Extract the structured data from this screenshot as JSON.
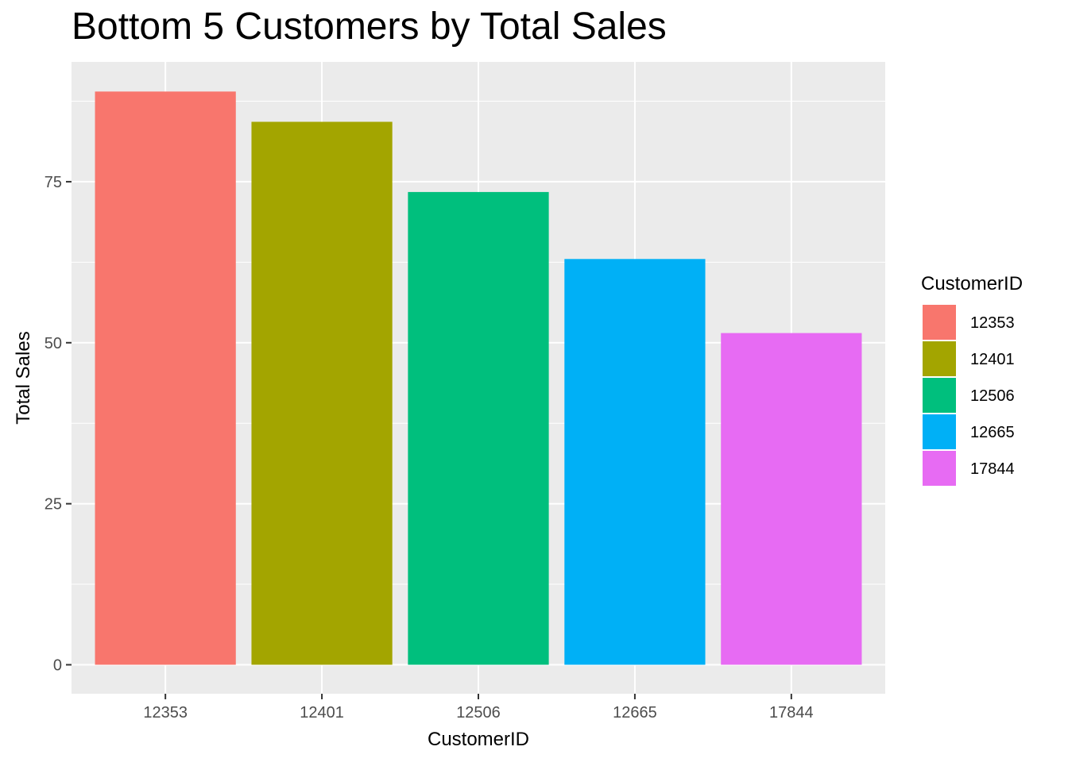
{
  "chart_data": {
    "type": "bar",
    "title": "Bottom 5 Customers by Total Sales",
    "xlabel": "CustomerID",
    "ylabel": "Total Sales",
    "categories": [
      "12353",
      "12401",
      "12506",
      "12665",
      "17844"
    ],
    "values": [
      89.0,
      84.3,
      73.4,
      63.0,
      51.5
    ],
    "colors": [
      "#F8766D",
      "#A3A500",
      "#00BF7D",
      "#00B0F6",
      "#E76BF3"
    ],
    "ylim": [
      -4.5,
      93.6
    ],
    "yticks": [
      0,
      25,
      50,
      75
    ],
    "grid": true,
    "panel_background": "#EBEBEB",
    "legend": {
      "title": "CustomerID",
      "position": "right",
      "entries": [
        "12353",
        "12401",
        "12506",
        "12665",
        "17844"
      ]
    }
  }
}
